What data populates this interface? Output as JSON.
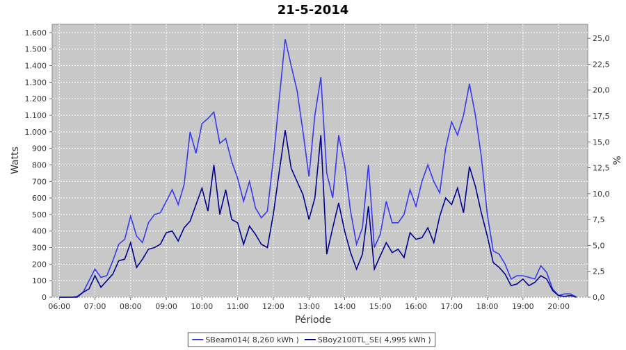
{
  "chart_data": {
    "type": "line",
    "title": "21-5-2014",
    "x_label": "Période",
    "y_label": "Watts",
    "y2_label": "%",
    "x": [
      "06:00",
      "06:10",
      "06:20",
      "06:30",
      "06:40",
      "06:50",
      "07:00",
      "07:10",
      "07:20",
      "07:30",
      "07:40",
      "07:50",
      "08:00",
      "08:10",
      "08:20",
      "08:30",
      "08:40",
      "08:50",
      "09:00",
      "09:10",
      "09:20",
      "09:30",
      "09:40",
      "09:50",
      "10:00",
      "10:10",
      "10:20",
      "10:30",
      "10:40",
      "10:50",
      "11:00",
      "11:10",
      "11:20",
      "11:30",
      "11:40",
      "11:50",
      "12:00",
      "12:10",
      "12:20",
      "12:30",
      "12:40",
      "12:50",
      "13:00",
      "13:10",
      "13:20",
      "13:30",
      "13:40",
      "13:50",
      "14:00",
      "14:10",
      "14:20",
      "14:30",
      "14:40",
      "14:50",
      "15:00",
      "15:10",
      "15:20",
      "15:30",
      "15:40",
      "15:50",
      "16:00",
      "16:10",
      "16:20",
      "16:30",
      "16:40",
      "16:50",
      "17:00",
      "17:10",
      "17:20",
      "17:30",
      "17:40",
      "17:50",
      "18:00",
      "18:10",
      "18:20",
      "18:30",
      "18:40",
      "18:50",
      "19:00",
      "19:10",
      "19:20",
      "19:30",
      "19:40",
      "19:50",
      "20:00",
      "20:10",
      "20:20",
      "20:30"
    ],
    "series": [
      {
        "name": "SBeam014( 8,260 kWh )",
        "color": "#3838ee",
        "values": [
          0,
          0,
          0,
          5,
          30,
          100,
          170,
          120,
          130,
          220,
          320,
          350,
          490,
          370,
          330,
          450,
          500,
          510,
          580,
          650,
          560,
          680,
          1000,
          870,
          1050,
          1080,
          1120,
          930,
          960,
          820,
          720,
          580,
          700,
          540,
          480,
          520,
          830,
          1200,
          1560,
          1400,
          1250,
          1000,
          730,
          1100,
          1330,
          750,
          600,
          980,
          800,
          520,
          320,
          420,
          800,
          300,
          380,
          580,
          450,
          450,
          500,
          650,
          550,
          700,
          800,
          700,
          630,
          900,
          1060,
          980,
          1100,
          1290,
          1100,
          850,
          500,
          280,
          260,
          200,
          110,
          130,
          130,
          120,
          110,
          190,
          150,
          50,
          10,
          20,
          20,
          0
        ]
      },
      {
        "name": "SBoy2100TL_SE( 4,995 kWh )",
        "color": "#000090",
        "values": [
          0,
          0,
          0,
          0,
          30,
          50,
          130,
          60,
          100,
          140,
          220,
          230,
          330,
          180,
          230,
          290,
          300,
          320,
          390,
          400,
          340,
          420,
          460,
          560,
          660,
          520,
          800,
          500,
          650,
          470,
          450,
          320,
          430,
          380,
          320,
          300,
          500,
          760,
          1010,
          780,
          700,
          620,
          470,
          600,
          980,
          260,
          420,
          570,
          400,
          270,
          170,
          260,
          550,
          170,
          250,
          330,
          270,
          290,
          240,
          390,
          350,
          360,
          420,
          330,
          490,
          600,
          560,
          660,
          510,
          790,
          670,
          510,
          370,
          210,
          180,
          140,
          70,
          80,
          110,
          70,
          90,
          130,
          110,
          40,
          10,
          5,
          10,
          0
        ]
      }
    ],
    "xlim": [
      "05:48",
      "20:49"
    ],
    "xticks": [
      "06:00",
      "07:00",
      "08:00",
      "09:00",
      "10:00",
      "11:00",
      "12:00",
      "13:00",
      "14:00",
      "15:00",
      "16:00",
      "17:00",
      "18:00",
      "19:00",
      "20:00"
    ],
    "ylim": [
      0,
      1650
    ],
    "yticks": [
      0,
      100,
      200,
      300,
      400,
      500,
      600,
      700,
      800,
      900,
      {
        "value": 1000,
        "label": "1.000"
      },
      {
        "value": 1100,
        "label": "1.100"
      },
      {
        "value": 1200,
        "label": "1.200"
      },
      {
        "value": 1300,
        "label": "1.300"
      },
      {
        "value": 1400,
        "label": "1.400"
      },
      {
        "value": 1500,
        "label": "1.500"
      },
      {
        "value": 1600,
        "label": "1.600"
      }
    ],
    "y2lim": [
      0,
      26.35
    ],
    "y2ticks": [
      {
        "value": 0,
        "label": "0,0"
      },
      {
        "value": 2.5,
        "label": "2,5"
      },
      {
        "value": 5,
        "label": "5,0"
      },
      {
        "value": 7.5,
        "label": "7,5"
      },
      {
        "value": 10,
        "label": "10,0"
      },
      {
        "value": 12.5,
        "label": "12,5"
      },
      {
        "value": 15,
        "label": "15,0"
      },
      {
        "value": 17.5,
        "label": "17,5"
      },
      {
        "value": 20,
        "label": "20,0"
      },
      {
        "value": 22.5,
        "label": "22,5"
      },
      {
        "value": 25,
        "label": "25,0"
      }
    ],
    "grid": true,
    "legend": "bottom"
  }
}
